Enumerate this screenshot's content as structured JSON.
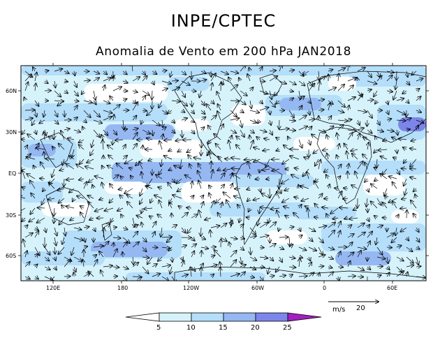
{
  "header": {
    "title": "INPE/CPTEC",
    "subtitle": "Anomalia de Vento em 200 hPa JAN2018"
  },
  "map": {
    "lat_labels": [
      "60N",
      "30N",
      "EQ",
      "30S",
      "60S"
    ],
    "lon_labels": [
      "120E",
      "180",
      "120W",
      "60W",
      "0",
      "60E"
    ],
    "shading_colors": [
      "#ffffff",
      "#d6f2fb",
      "#b4defa",
      "#96b8f2",
      "#7c86ea",
      "#5a56e2",
      "#a020c0"
    ],
    "vector_color": "#000000",
    "coast_color": "#000000"
  },
  "colorbar": {
    "labels": [
      "5",
      "10",
      "15",
      "20",
      "25"
    ]
  },
  "reference_vector": {
    "unit": "m/s",
    "value": "20"
  }
}
